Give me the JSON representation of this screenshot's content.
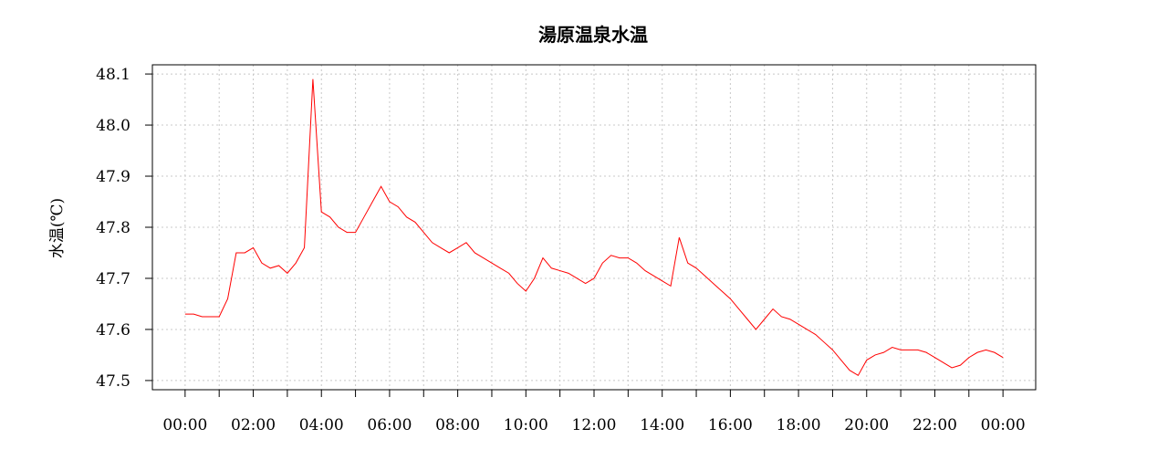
{
  "chart_data": {
    "type": "line",
    "title": "湯原温泉水温",
    "y_label": "水温(℃)",
    "x": [
      0,
      0.25,
      0.5,
      0.75,
      1,
      1.25,
      1.5,
      1.75,
      2,
      2.25,
      2.5,
      2.75,
      3,
      3.25,
      3.5,
      3.75,
      4,
      4.25,
      4.5,
      4.75,
      5,
      5.25,
      5.5,
      5.75,
      6,
      6.25,
      6.5,
      6.75,
      7,
      7.25,
      7.5,
      7.75,
      8,
      8.25,
      8.5,
      8.75,
      9,
      9.25,
      9.5,
      9.75,
      10,
      10.25,
      10.5,
      10.75,
      11,
      11.25,
      11.5,
      11.75,
      12,
      12.25,
      12.5,
      12.75,
      13,
      13.25,
      13.5,
      13.75,
      14,
      14.25,
      14.5,
      14.75,
      15,
      15.25,
      15.5,
      15.75,
      16,
      16.25,
      16.5,
      16.75,
      17,
      17.25,
      17.5,
      17.75,
      18,
      18.25,
      18.5,
      18.75,
      19,
      19.25,
      19.5,
      19.75,
      20,
      20.25,
      20.5,
      20.75,
      21,
      21.25,
      21.5,
      21.75,
      22,
      22.25,
      22.5,
      22.75,
      23,
      23.25,
      23.5,
      23.75,
      24
    ],
    "values": [
      47.63,
      47.63,
      47.625,
      47.625,
      47.625,
      47.66,
      47.75,
      47.75,
      47.76,
      47.73,
      47.72,
      47.725,
      47.71,
      47.73,
      47.76,
      48.09,
      47.83,
      47.82,
      47.8,
      47.79,
      47.79,
      47.82,
      47.85,
      47.88,
      47.85,
      47.84,
      47.82,
      47.81,
      47.79,
      47.77,
      47.76,
      47.75,
      47.76,
      47.77,
      47.75,
      47.74,
      47.73,
      47.72,
      47.71,
      47.69,
      47.675,
      47.7,
      47.74,
      47.72,
      47.715,
      47.71,
      47.7,
      47.69,
      47.7,
      47.73,
      47.745,
      47.74,
      47.74,
      47.73,
      47.715,
      47.705,
      47.695,
      47.685,
      47.78,
      47.73,
      47.72,
      47.705,
      47.69,
      47.675,
      47.66,
      47.64,
      47.62,
      47.6,
      47.62,
      47.64,
      47.625,
      47.62,
      47.61,
      47.6,
      47.59,
      47.575,
      47.56,
      47.54,
      47.52,
      47.51,
      47.54,
      47.55,
      47.555,
      47.565,
      47.56,
      47.56,
      47.56,
      47.555,
      47.545,
      47.535,
      47.525,
      47.53,
      47.545,
      47.555,
      47.56,
      47.555,
      47.545
    ],
    "color": "#ff0000",
    "xlim": [
      -0.96,
      24.96
    ],
    "xticks": [
      {
        "value": 0,
        "label": "00:00"
      },
      {
        "value": 2,
        "label": "02:00"
      },
      {
        "value": 4,
        "label": "04:00"
      },
      {
        "value": 6,
        "label": "06:00"
      },
      {
        "value": 8,
        "label": "08:00"
      },
      {
        "value": 10,
        "label": "10:00"
      },
      {
        "value": 12,
        "label": "12:00"
      },
      {
        "value": 14,
        "label": "14:00"
      },
      {
        "value": 16,
        "label": "16:00"
      },
      {
        "value": 18,
        "label": "18:00"
      },
      {
        "value": 20,
        "label": "20:00"
      },
      {
        "value": 22,
        "label": "22:00"
      },
      {
        "value": 24,
        "label": "00:00"
      }
    ],
    "xminorticks": [
      1,
      3,
      5,
      7,
      9,
      11,
      13,
      15,
      17,
      19,
      21,
      23
    ],
    "ylim": [
      47.482,
      48.118
    ],
    "yticks": [
      47.5,
      47.6,
      47.7,
      47.8,
      47.9,
      {
        "value": 48,
        "label": "48.0"
      },
      48.1
    ],
    "grid": true
  }
}
